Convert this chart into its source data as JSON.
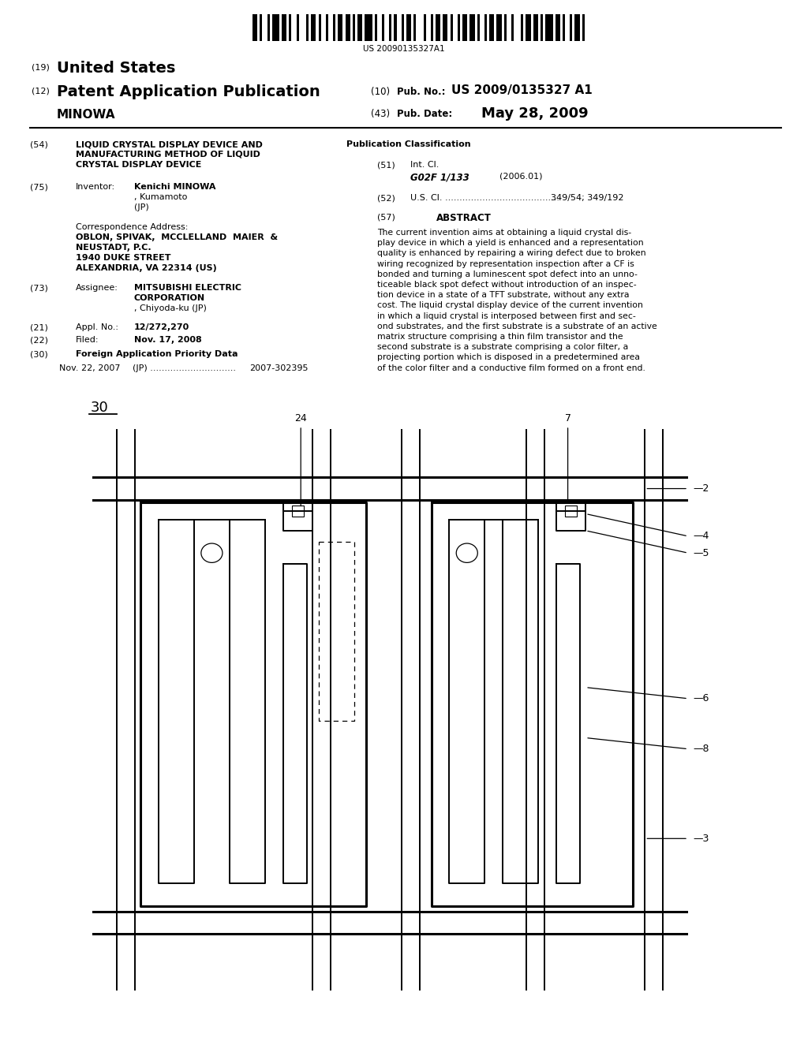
{
  "bg_color": "#ffffff",
  "page_width": 10.24,
  "page_height": 13.2,
  "barcode_text": "US 20090135327A1",
  "abstract_lines": [
    "The current invention aims at obtaining a liquid crystal dis-",
    "play device in which a yield is enhanced and a representation",
    "quality is enhanced by repairing a wiring defect due to broken",
    "wiring recognized by representation inspection after a CF is",
    "bonded and turning a luminescent spot defect into an unno-",
    "ticeable black spot defect without introduction of an inspec-",
    "tion device in a state of a TFT substrate, without any extra",
    "cost. The liquid crystal display device of the current invention",
    "in which a liquid crystal is interposed between first and sec-",
    "ond substrates, and the first substrate is a substrate of an active",
    "matrix structure comprising a thin film transistor and the",
    "second substrate is a substrate comprising a color filter, a",
    "projecting portion which is disposed in a predetermined area",
    "of the color filter and a conductive film formed on a front end."
  ]
}
